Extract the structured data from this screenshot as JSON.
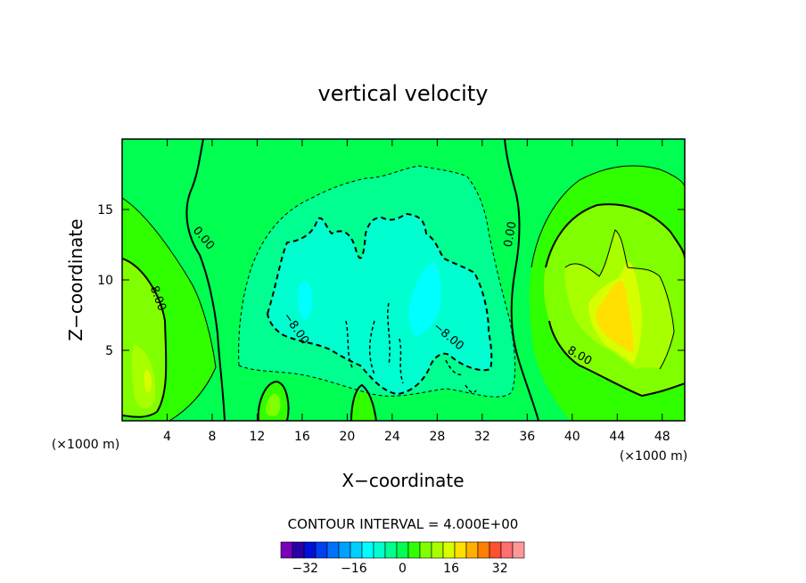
{
  "chart_data": {
    "type": "contour",
    "title": "vertical velocity",
    "xlabel": "X−coordinate",
    "ylabel": "Z−coordinate",
    "x_unit_label_left": "(×1000 m)",
    "x_unit_label_right": "(×1000 m)",
    "xlim": [
      0,
      50
    ],
    "ylim": [
      0,
      20
    ],
    "x_ticks": [
      4,
      8,
      12,
      16,
      20,
      24,
      28,
      32,
      36,
      40,
      44,
      48
    ],
    "x_tick_labels": [
      "4",
      "8",
      "12",
      "16",
      "20",
      "24",
      "28",
      "32",
      "36",
      "40",
      "44",
      "48"
    ],
    "y_ticks": [
      5,
      10,
      15
    ],
    "y_tick_labels": [
      "5",
      "10",
      "15"
    ],
    "contour_interval_text": "CONTOUR INTERVAL = 4.000E+00",
    "contour_interval": 4.0,
    "contour_labels": [
      {
        "text": "0.00",
        "x": 7,
        "y": 12.8
      },
      {
        "text": "0.00",
        "x": 34.8,
        "y": 13.2
      },
      {
        "text": "8.00",
        "x": 2.9,
        "y": 8.6
      },
      {
        "text": "−8.00",
        "x": 15.2,
        "y": 6.4
      },
      {
        "text": "−8.00",
        "x": 28.8,
        "y": 5.8
      },
      {
        "text": "8.00",
        "x": 40.5,
        "y": 4.4
      }
    ],
    "colorbar": {
      "levels": [
        -40,
        -36,
        -32,
        -28,
        -24,
        -20,
        -16,
        -12,
        -8,
        -4,
        0,
        4,
        8,
        12,
        16,
        20,
        24,
        28,
        32,
        36,
        40
      ],
      "colors": [
        "#7a00b8",
        "#2a00a8",
        "#0010d8",
        "#0040f0",
        "#0070ff",
        "#00a0ff",
        "#00d0ff",
        "#00ffff",
        "#00ffd0",
        "#00ff90",
        "#00ff50",
        "#30ff00",
        "#80ff00",
        "#a8ff00",
        "#d8ff00",
        "#ffe000",
        "#ffb000",
        "#ff8000",
        "#ff5030",
        "#ff7070",
        "#ff9898"
      ],
      "tick_values": [
        -32,
        -16,
        0,
        16,
        32
      ],
      "tick_labels": [
        "−32",
        "−16",
        "0",
        "16",
        "32"
      ]
    },
    "field_colors": {
      "c_neg8": "#00ffd0",
      "c_neg4": "#00ff90",
      "c_0": "#00ff50",
      "c_4": "#30ff00",
      "c_8": "#80ff00",
      "c_12": "#a8ff00",
      "c_16": "#d8ff00",
      "c_20": "#ffe000",
      "c_24": "#ffb000",
      "c_neg12": "#00ffff"
    }
  }
}
